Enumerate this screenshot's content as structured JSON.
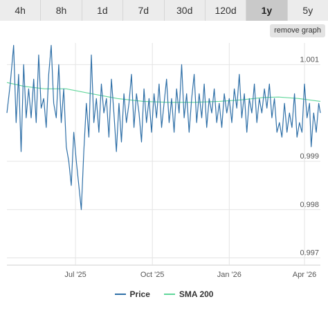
{
  "ranges": [
    {
      "label": "4h",
      "active": false
    },
    {
      "label": "8h",
      "active": false
    },
    {
      "label": "1d",
      "active": false
    },
    {
      "label": "7d",
      "active": false
    },
    {
      "label": "30d",
      "active": false
    },
    {
      "label": "120d",
      "active": false
    },
    {
      "label": "1y",
      "active": true
    },
    {
      "label": "5y",
      "active": false
    }
  ],
  "remove_label": "remove graph",
  "colors": {
    "price": "#2e6fa7",
    "sma": "#5fd69a",
    "grid": "#e4e4e4"
  },
  "chart_data": {
    "type": "line",
    "title": "",
    "xlabel": "",
    "ylabel": "",
    "ylim": [
      0.99685,
      1.00145
    ],
    "xlim": [
      "2025-04-10",
      "2026-04-20"
    ],
    "y_ticks": [
      {
        "value": 1.001,
        "label": "1.001"
      },
      {
        "value": 0.999,
        "label": "0.999"
      },
      {
        "value": 0.998,
        "label": "0.998"
      },
      {
        "value": 0.997,
        "label": "0.997"
      }
    ],
    "x_ticks": [
      {
        "value": "2025-07-01",
        "label": "Jul '25"
      },
      {
        "value": "2025-10-01",
        "label": "Oct '25"
      },
      {
        "value": "2026-01-01",
        "label": "Jan '26"
      },
      {
        "value": "2026-04-01",
        "label": "Apr '26"
      }
    ],
    "grid": true,
    "legend": "bottom-center",
    "series": [
      {
        "name": "Price",
        "color": "#2e6fa7",
        "points": [
          [
            "2025-04-10",
            1.0
          ],
          [
            "2025-04-14",
            1.0006
          ],
          [
            "2025-04-18",
            1.0014
          ],
          [
            "2025-04-21",
            0.9998
          ],
          [
            "2025-04-24",
            1.0008
          ],
          [
            "2025-04-27",
            0.9992
          ],
          [
            "2025-04-30",
            1.001
          ],
          [
            "2025-05-03",
            0.9999
          ],
          [
            "2025-05-06",
            1.0005
          ],
          [
            "2025-05-09",
            0.9999
          ],
          [
            "2025-05-12",
            1.0007
          ],
          [
            "2025-05-15",
            0.9998
          ],
          [
            "2025-05-18",
            1.0012
          ],
          [
            "2025-05-21",
            1.0001
          ],
          [
            "2025-05-24",
            1.0003
          ],
          [
            "2025-05-27",
            0.9997
          ],
          [
            "2025-05-30",
            1.0008
          ],
          [
            "2025-06-02",
            1.0014
          ],
          [
            "2025-06-05",
            1.0002
          ],
          [
            "2025-06-08",
            0.9999
          ],
          [
            "2025-06-11",
            1.001
          ],
          [
            "2025-06-14",
            0.9998
          ],
          [
            "2025-06-17",
            1.0005
          ],
          [
            "2025-06-20",
            0.9993
          ],
          [
            "2025-06-23",
            0.999
          ],
          [
            "2025-06-26",
            0.9985
          ],
          [
            "2025-06-29",
            0.9996
          ],
          [
            "2025-07-02",
            0.999
          ],
          [
            "2025-07-05",
            0.9985
          ],
          [
            "2025-07-08",
            0.998
          ],
          [
            "2025-07-11",
            0.9992
          ],
          [
            "2025-07-14",
            1.0002
          ],
          [
            "2025-07-17",
            0.9995
          ],
          [
            "2025-07-20",
            1.0012
          ],
          [
            "2025-07-23",
            0.9998
          ],
          [
            "2025-07-26",
            1.0003
          ],
          [
            "2025-07-29",
            0.9996
          ],
          [
            "2025-08-01",
            1.0006
          ],
          [
            "2025-08-04",
            1.0
          ],
          [
            "2025-08-07",
            1.0003
          ],
          [
            "2025-08-10",
            0.9995
          ],
          [
            "2025-08-13",
            1.0007
          ],
          [
            "2025-08-16",
            1.0
          ],
          [
            "2025-08-19",
            0.9992
          ],
          [
            "2025-08-22",
            1.0002
          ],
          [
            "2025-08-25",
            0.9994
          ],
          [
            "2025-08-28",
            1.0004
          ],
          [
            "2025-08-31",
            0.9998
          ],
          [
            "2025-09-03",
            1.0002
          ],
          [
            "2025-09-06",
            1.0008
          ],
          [
            "2025-09-09",
            0.9997
          ],
          [
            "2025-09-12",
            1.0004
          ],
          [
            "2025-09-15",
            1.0
          ],
          [
            "2025-09-18",
            0.9994
          ],
          [
            "2025-09-21",
            1.0005
          ],
          [
            "2025-09-24",
            0.9998
          ],
          [
            "2025-09-27",
            1.0003
          ],
          [
            "2025-09-30",
            0.9996
          ],
          [
            "2025-10-03",
            1.0004
          ],
          [
            "2025-10-06",
            0.9999
          ],
          [
            "2025-10-09",
            1.0006
          ],
          [
            "2025-10-12",
            0.9997
          ],
          [
            "2025-10-15",
            1.0002
          ],
          [
            "2025-10-18",
            1.0007
          ],
          [
            "2025-10-21",
            0.9998
          ],
          [
            "2025-10-24",
            1.0003
          ],
          [
            "2025-10-27",
            0.9996
          ],
          [
            "2025-10-30",
            1.0005
          ],
          [
            "2025-11-02",
            1.0
          ],
          [
            "2025-11-05",
            1.001
          ],
          [
            "2025-11-08",
            0.9999
          ],
          [
            "2025-11-11",
            1.0004
          ],
          [
            "2025-11-14",
            0.9996
          ],
          [
            "2025-11-17",
            1.0003
          ],
          [
            "2025-11-20",
            1.0008
          ],
          [
            "2025-11-23",
            0.9998
          ],
          [
            "2025-11-26",
            1.0004
          ],
          [
            "2025-11-29",
            0.9999
          ],
          [
            "2025-12-02",
            1.0006
          ],
          [
            "2025-12-05",
            0.9997
          ],
          [
            "2025-12-08",
            1.0003
          ],
          [
            "2025-12-11",
            1.0
          ],
          [
            "2025-12-14",
            1.0005
          ],
          [
            "2025-12-17",
            0.9998
          ],
          [
            "2025-12-20",
            1.0002
          ],
          [
            "2025-12-23",
            0.9997
          ],
          [
            "2025-12-26",
            1.0004
          ],
          [
            "2025-12-29",
            1.0
          ],
          [
            "2026-01-01",
            1.0003
          ],
          [
            "2026-01-04",
            0.9998
          ],
          [
            "2026-01-07",
            1.0005
          ],
          [
            "2026-01-10",
            1.0001
          ],
          [
            "2026-01-13",
            1.0008
          ],
          [
            "2026-01-16",
            0.9999
          ],
          [
            "2026-01-19",
            1.0004
          ],
          [
            "2026-01-22",
            0.9996
          ],
          [
            "2026-01-25",
            1.0003
          ],
          [
            "2026-01-28",
            1.0
          ],
          [
            "2026-01-31",
            1.0006
          ],
          [
            "2026-02-03",
            0.9998
          ],
          [
            "2026-02-06",
            1.0003
          ],
          [
            "2026-02-09",
            1.0
          ],
          [
            "2026-02-12",
            1.0005
          ],
          [
            "2026-02-15",
            1.0001
          ],
          [
            "2026-02-18",
            1.0006
          ],
          [
            "2026-02-21",
            0.9999
          ],
          [
            "2026-02-24",
            1.0003
          ],
          [
            "2026-02-27",
            0.9996
          ],
          [
            "2026-03-02",
            0.9998
          ],
          [
            "2026-03-05",
            0.9995
          ],
          [
            "2026-03-08",
            1.0002
          ],
          [
            "2026-03-11",
            0.9996
          ],
          [
            "2026-03-14",
            1.0
          ],
          [
            "2026-03-17",
            0.9997
          ],
          [
            "2026-03-20",
            1.0004
          ],
          [
            "2026-03-23",
            0.9995
          ],
          [
            "2026-03-26",
            0.9998
          ],
          [
            "2026-03-29",
            0.9996
          ],
          [
            "2026-04-01",
            1.0006
          ],
          [
            "2026-04-04",
            0.9999
          ],
          [
            "2026-04-07",
            1.0002
          ],
          [
            "2026-04-09",
            0.9993
          ],
          [
            "2026-04-12",
            1.0
          ],
          [
            "2026-04-15",
            0.9996
          ],
          [
            "2026-04-18",
            1.0002
          ],
          [
            "2026-04-20",
            1.0
          ]
        ]
      },
      {
        "name": "SMA 200",
        "color": "#5fd69a",
        "points": [
          [
            "2025-04-10",
            1.00063
          ],
          [
            "2025-05-01",
            1.00055
          ],
          [
            "2025-05-25",
            1.0005
          ],
          [
            "2025-06-20",
            1.0005
          ],
          [
            "2025-07-20",
            1.0004
          ],
          [
            "2025-08-20",
            1.0003
          ],
          [
            "2025-09-20",
            1.00024
          ],
          [
            "2025-10-20",
            1.00022
          ],
          [
            "2025-11-20",
            1.00022
          ],
          [
            "2025-12-20",
            1.00024
          ],
          [
            "2026-01-15",
            1.00027
          ],
          [
            "2026-02-10",
            1.00032
          ],
          [
            "2026-03-01",
            1.00033
          ],
          [
            "2026-03-25",
            1.0003
          ],
          [
            "2026-04-20",
            1.00024
          ]
        ]
      }
    ]
  }
}
